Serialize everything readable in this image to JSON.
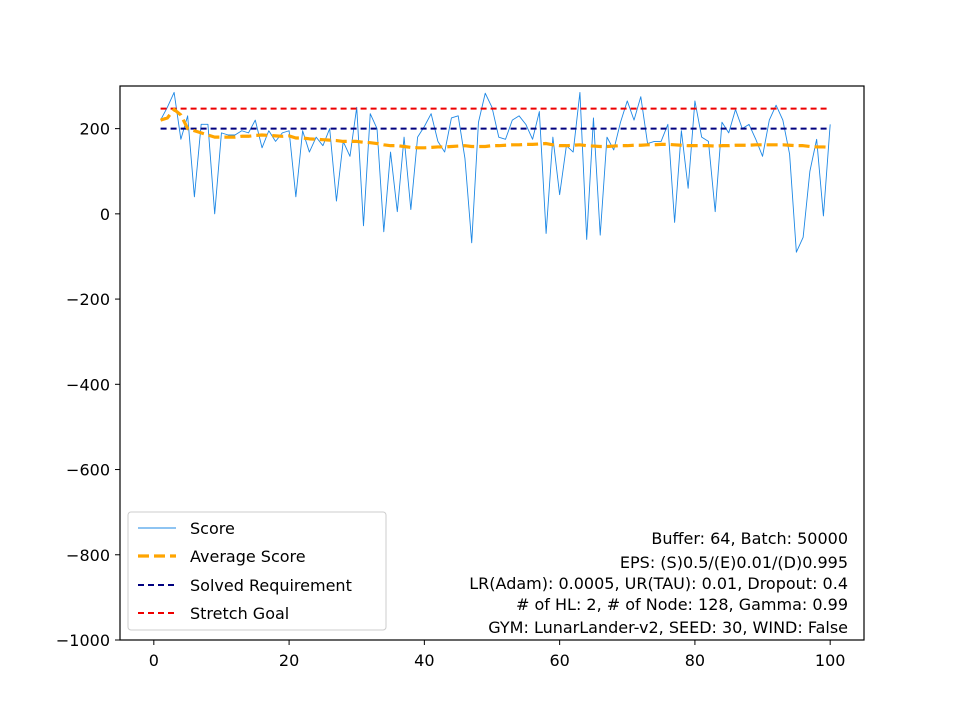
{
  "chart_data": {
    "type": "line",
    "xlim": [
      -5,
      105
    ],
    "ylim": [
      -1000,
      300
    ],
    "xticks": [
      0,
      20,
      40,
      60,
      80,
      100
    ],
    "yticks": [
      -1000,
      -800,
      -600,
      -400,
      -200,
      0,
      200
    ],
    "xtick_labels": [
      "0",
      "20",
      "40",
      "60",
      "80",
      "100"
    ],
    "ytick_labels": [
      "−1000",
      "−800",
      "−600",
      "−400",
      "−200",
      "0",
      "200"
    ],
    "grid": false,
    "legend_position": "lower-left",
    "x": [
      1,
      2,
      3,
      4,
      5,
      6,
      7,
      8,
      9,
      10,
      11,
      12,
      13,
      14,
      15,
      16,
      17,
      18,
      19,
      20,
      21,
      22,
      23,
      24,
      25,
      26,
      27,
      28,
      29,
      30,
      31,
      32,
      33,
      34,
      35,
      36,
      37,
      38,
      39,
      40,
      41,
      42,
      43,
      44,
      45,
      46,
      47,
      48,
      49,
      50,
      51,
      52,
      53,
      54,
      55,
      56,
      57,
      58,
      59,
      60,
      61,
      62,
      63,
      64,
      65,
      66,
      67,
      68,
      69,
      70,
      71,
      72,
      73,
      74,
      75,
      76,
      77,
      78,
      79,
      80,
      81,
      82,
      83,
      84,
      85,
      86,
      87,
      88,
      89,
      90,
      91,
      92,
      93,
      94,
      95,
      96,
      97,
      98,
      99,
      100
    ],
    "series": [
      {
        "name": "Score",
        "color": "#1e88e5",
        "style": "solid-thin",
        "values": [
          220,
          250,
          285,
          175,
          230,
          40,
          210,
          210,
          0,
          190,
          185,
          185,
          195,
          190,
          220,
          155,
          195,
          170,
          190,
          195,
          40,
          195,
          145,
          180,
          160,
          200,
          30,
          170,
          135,
          250,
          -28,
          235,
          200,
          -42,
          145,
          5,
          180,
          10,
          180,
          205,
          235,
          170,
          145,
          225,
          230,
          130,
          -68,
          215,
          283,
          250,
          180,
          175,
          220,
          230,
          210,
          175,
          240,
          -46,
          180,
          45,
          160,
          145,
          285,
          -60,
          225,
          -50,
          180,
          150,
          215,
          265,
          220,
          275,
          165,
          170,
          170,
          210,
          -20,
          195,
          60,
          265,
          180,
          170,
          5,
          215,
          190,
          245,
          200,
          210,
          175,
          135,
          220,
          255,
          220,
          140,
          -90,
          -55,
          100,
          175,
          -5,
          210
        ]
      },
      {
        "name": "Average Score",
        "color": "#ffa500",
        "style": "dashed-thick",
        "values": [
          220,
          225,
          245,
          232,
          200,
          195,
          190,
          185,
          180,
          180,
          180,
          180,
          182,
          182,
          184,
          185,
          184,
          183,
          182,
          183,
          178,
          178,
          176,
          175,
          174,
          173,
          172,
          170,
          170,
          170,
          168,
          167,
          165,
          162,
          160,
          160,
          158,
          156,
          155,
          155,
          156,
          157,
          157,
          158,
          159,
          160,
          158,
          158,
          158,
          160,
          160,
          161,
          162,
          162,
          163,
          163,
          164,
          165,
          162,
          160,
          160,
          161,
          162,
          160,
          159,
          158,
          158,
          159,
          160,
          160,
          161,
          161,
          162,
          162,
          163,
          163,
          162,
          161,
          160,
          160,
          160,
          160,
          159,
          160,
          160,
          161,
          161,
          161,
          162,
          162,
          162,
          162,
          162,
          161,
          160,
          160,
          158,
          157,
          157,
          156
        ]
      },
      {
        "name": "Solved Requirement",
        "color": "#00007f",
        "style": "dashed",
        "values_constant": 200
      },
      {
        "name": "Stretch Goal",
        "color": "#ee0000",
        "style": "dashed",
        "values_constant": 247
      }
    ],
    "annotations": [
      "Buffer: 64, Batch: 50000",
      "EPS: (S)0.5/(E)0.01/(D)0.995",
      "LR(Adam): 0.0005, UR(TAU): 0.01, Dropout: 0.4",
      "# of HL: 2, # of Node: 128, Gamma: 0.99",
      "GYM: LunarLander-v2, SEED: 30, WIND: False"
    ]
  }
}
